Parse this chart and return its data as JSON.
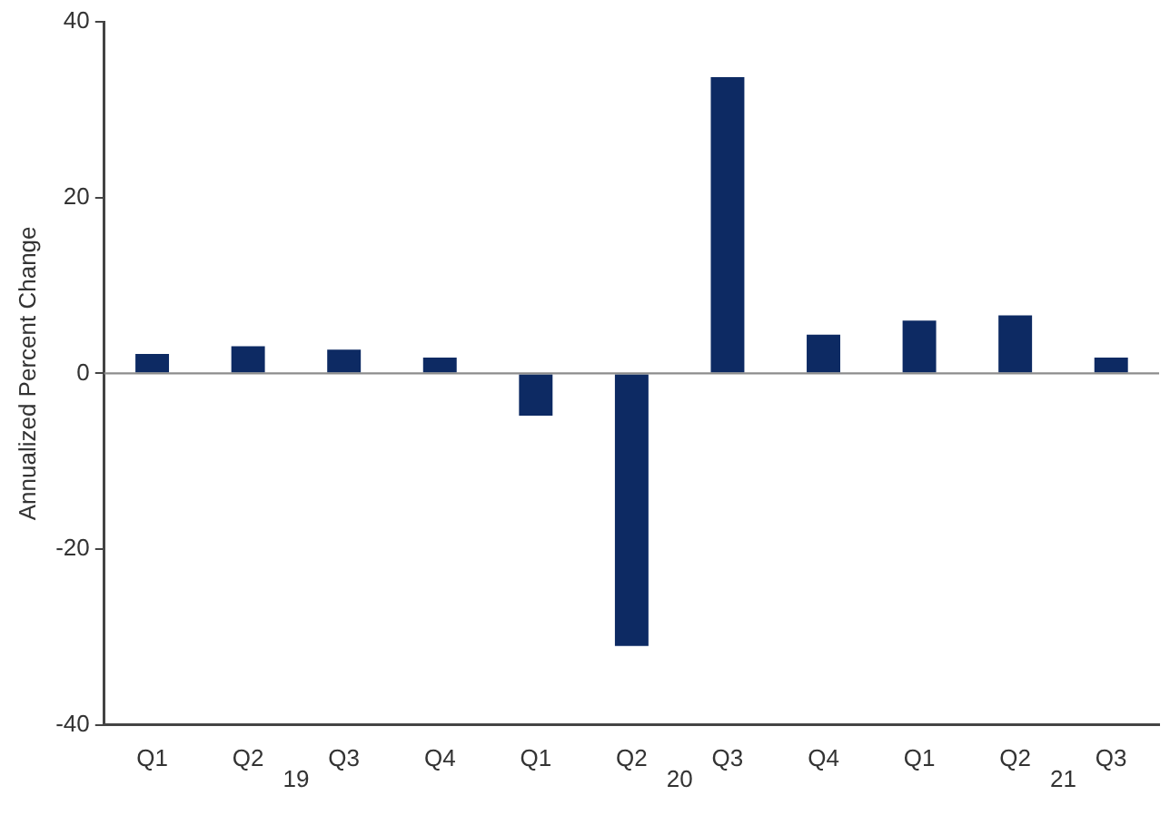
{
  "chart_data": {
    "type": "bar",
    "ylabel": "Annualized Percent Change",
    "categories": [
      "Q1",
      "Q2",
      "Q3",
      "Q4",
      "Q1",
      "Q2",
      "Q3",
      "Q4",
      "Q1",
      "Q2",
      "Q3"
    ],
    "values": [
      2.2,
      3.1,
      2.7,
      1.8,
      -4.8,
      -31.0,
      33.7,
      4.4,
      6.0,
      6.6,
      1.8
    ],
    "color": "#0d2a63",
    "ylim": [
      -40,
      40
    ],
    "yticks": [
      -40,
      -20,
      0,
      20,
      40
    ],
    "ref_lines": [
      {
        "axis": "y",
        "value": 0,
        "color": "#8c8c8c"
      }
    ],
    "annotations": [
      "19",
      "20",
      "21"
    ],
    "grid": false,
    "legend": false
  }
}
